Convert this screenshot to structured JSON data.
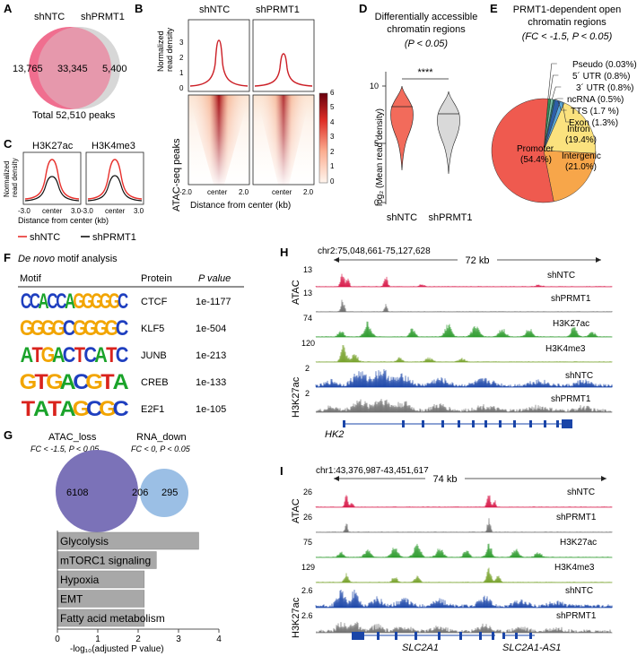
{
  "panels": {
    "A": {
      "label": "A",
      "sets": [
        {
          "name": "shNTC",
          "color": "#f06e8f"
        },
        {
          "name": "shPRMT1",
          "color": "#d7d7d7"
        }
      ],
      "unique_a": "13,765",
      "overlap": "33,345",
      "unique_b": "5,400",
      "total": "Total 52,510 peaks"
    },
    "B": {
      "label": "B",
      "titles": [
        "shNTC",
        "shPRMT1"
      ],
      "ylabel_top": [
        "Normalized",
        "read density"
      ],
      "yticks": [
        "3",
        "2",
        "1",
        "0"
      ],
      "ylabel_heat": "ATAC-seq peaks",
      "xticks": [
        "-2.0",
        "center",
        "2.0"
      ],
      "xlabel": "Distance from center (kb)",
      "colorbar_ticks": [
        "6",
        "5",
        "4",
        "3",
        "2",
        "1",
        "0"
      ],
      "colors": {
        "peak": "#cc2027",
        "heat_high": "#a50f15",
        "heat_low": "#fdf0e6"
      }
    },
    "C": {
      "label": "C",
      "titles": [
        "H3K27ac",
        "H3K4me3"
      ],
      "ylabel": [
        "Normalized",
        "read density"
      ],
      "xticks": [
        "-3.0",
        "center",
        "3.0"
      ],
      "xlabel": "Distance from center (kb)",
      "legend": [
        "shNTC",
        "shPRMT1"
      ],
      "colors": {
        "shNTC": "#e8312d",
        "shPRMT1": "#111111"
      }
    },
    "D": {
      "label": "D",
      "title": [
        "Differentially accessible",
        "chromatin regions"
      ],
      "pval": "(P < 0.05)",
      "ylabel": "log₂ (Mean read density)",
      "yticks": [
        "10",
        "5",
        "0"
      ],
      "sig": "****",
      "groups": [
        "shNTC",
        "shPRMT1"
      ],
      "colors": {
        "shNTC": "#f26b5b",
        "shPRMT1": "#d9d9d9"
      }
    },
    "E": {
      "label": "E",
      "title": [
        "PRMT1-dependent open",
        "chromatin regions"
      ],
      "subtitle": "(FC < -1.5, P < 0.05)",
      "slices": [
        {
          "name": "Promoter",
          "value": 54.4,
          "text": "(54.4%)",
          "color": "#ef5a4f"
        },
        {
          "name": "Intergenic",
          "value": 21.0,
          "text": "(21.0%)",
          "color": "#f7a64a"
        },
        {
          "name": "Intron",
          "value": 19.4,
          "text": "(19.4%)",
          "color": "#fbe27e"
        },
        {
          "name": "Exon",
          "value": 1.3,
          "text": "Exon (1.3%)",
          "color": "#5aa7d9"
        },
        {
          "name": "TTS",
          "value": 1.7,
          "text": "TTS (1.7 %)",
          "color": "#2d5fa8"
        },
        {
          "name": "ncRNA",
          "value": 0.5,
          "text": "ncRNA (0.5%)",
          "color": "#1d7a76"
        },
        {
          "name": "3' UTR",
          "value": 0.8,
          "text": "3´ UTR (0.8%)",
          "color": "#78c0a8"
        },
        {
          "name": "5' UTR",
          "value": 0.8,
          "text": "5´ UTR (0.8%)",
          "color": "#2f8f55"
        },
        {
          "name": "Pseudo",
          "value": 0.03,
          "text": "Pseudo (0.03%)",
          "color": "#7a4fa0"
        }
      ]
    },
    "F": {
      "label": "F",
      "title_italic": "De novo",
      "title_rest": " motif analysis",
      "headers": [
        "Motif",
        "Protein",
        "P value"
      ],
      "rows": [
        {
          "motif": "CCACCAGGGGGC",
          "protein": "CTCF",
          "p": "1e-1177"
        },
        {
          "motif": "GGGGCGGGGC",
          "protein": "KLF5",
          "p": "1e-504"
        },
        {
          "motif": "ATGACTCATC",
          "protein": "JUNB",
          "p": "1e-213"
        },
        {
          "motif": "GTGACGTA",
          "protein": "CREB",
          "p": "1e-133"
        },
        {
          "motif": "TATAGCGC",
          "protein": "E2F1",
          "p": "1e-105"
        }
      ],
      "base_colors": {
        "A": "#1aa32a",
        "C": "#1f3fbf",
        "G": "#f2a500",
        "T": "#d9231d"
      }
    },
    "G": {
      "label": "G",
      "sets": [
        {
          "name": "ATAC_loss",
          "criteria": "FC < -1.5, P < 0.05",
          "color": "#7b72b8"
        },
        {
          "name": "RNA_down",
          "criteria": "FC < 0, P < 0.05",
          "color": "#8ab4e0"
        }
      ],
      "unique_a": "6108",
      "overlap": "206",
      "unique_b": "295",
      "xlabel": "-log₁₀(adjusted P value)",
      "xticks": [
        "0",
        "1",
        "2",
        "3",
        "4"
      ]
    },
    "H": {
      "label": "H",
      "locus": "chr2:75,048,661-75,127,628",
      "scale": "72 kb",
      "gene": "HK2",
      "group_atac": "ATAC",
      "group_k27": "H3K27ac",
      "tracks": [
        {
          "max": "13",
          "name": "shNTC",
          "color": "#d81b4a"
        },
        {
          "max": "13",
          "name": "shPRMT1",
          "color": "#6e6e6e"
        },
        {
          "max": "74",
          "name": "H3K27ac",
          "color": "#2c9a2c"
        },
        {
          "max": "120",
          "name": "H3K4me3",
          "color": "#76a12a"
        },
        {
          "max": "2",
          "name": "shNTC",
          "color": "#1a45a8"
        },
        {
          "max": "2",
          "name": "shPRMT1",
          "color": "#6e6e6e"
        }
      ]
    },
    "I": {
      "label": "I",
      "locus": "chr1:43,376,987-43,451,617",
      "scale": "74 kb",
      "genes": [
        "SLC2A1",
        "SLC2A1-AS1"
      ],
      "group_atac": "ATAC",
      "group_k27": "H3K27ac",
      "tracks": [
        {
          "max": "26",
          "name": "shNTC",
          "color": "#d81b4a"
        },
        {
          "max": "26",
          "name": "shPRMT1",
          "color": "#6e6e6e"
        },
        {
          "max": "75",
          "name": "H3K27ac",
          "color": "#2c9a2c"
        },
        {
          "max": "129",
          "name": "H3K4me3",
          "color": "#76a12a"
        },
        {
          "max": "2.6",
          "name": "shNTC",
          "color": "#1a45a8"
        },
        {
          "max": "2.6",
          "name": "shPRMT1",
          "color": "#6e6e6e"
        }
      ]
    }
  },
  "chart_data": [
    {
      "type": "pie",
      "title": "PRMT1-dependent open chromatin regions (FC < -1.5, P < 0.05)",
      "categories": [
        "Promoter",
        "Intergenic",
        "Intron",
        "Exon",
        "TTS",
        "ncRNA",
        "3' UTR",
        "5' UTR",
        "Pseudo"
      ],
      "values": [
        54.4,
        21.0,
        19.4,
        1.3,
        1.7,
        0.5,
        0.8,
        0.8,
        0.03
      ]
    },
    {
      "type": "bar",
      "title": "Enrichment",
      "categories": [
        "Glycolysis",
        "mTORC1 signaling",
        "Hypoxia",
        "EMT",
        "Fatty acid metabolism"
      ],
      "values": [
        3.5,
        2.45,
        2.15,
        2.15,
        2.15
      ],
      "xlabel": "-log10(adjusted P value)",
      "xlim": [
        0,
        4
      ],
      "color": "#a8a8a8"
    }
  ]
}
